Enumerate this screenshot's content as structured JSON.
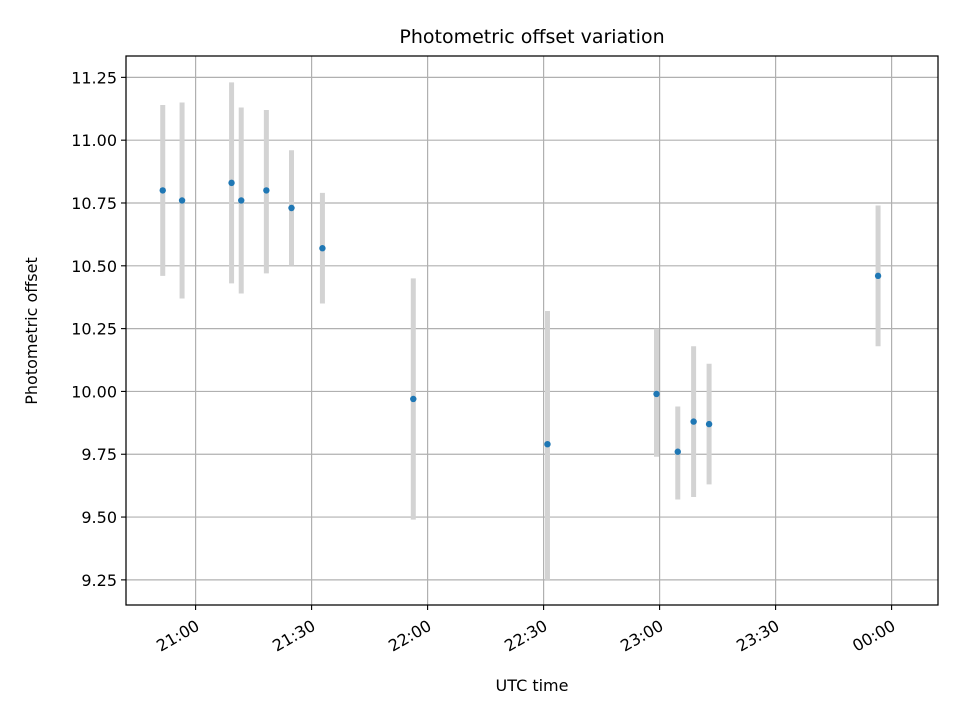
{
  "chart_data": {
    "type": "scatter",
    "title": "Photometric offset variation",
    "xlabel": "UTC time",
    "ylabel": "Photometric offset",
    "x_unit": "minutes since 20:00 UTC",
    "xlim": [
      42,
      252
    ],
    "ylim": [
      9.15,
      11.335
    ],
    "grid": true,
    "x_ticks": [
      {
        "value": 60,
        "label": "21:00"
      },
      {
        "value": 90,
        "label": "21:30"
      },
      {
        "value": 120,
        "label": "22:00"
      },
      {
        "value": 150,
        "label": "22:30"
      },
      {
        "value": 180,
        "label": "23:00"
      },
      {
        "value": 210,
        "label": "23:30"
      },
      {
        "value": 240,
        "label": "00:00"
      }
    ],
    "y_ticks": [
      {
        "value": 9.25,
        "label": "9.25"
      },
      {
        "value": 9.5,
        "label": "9.50"
      },
      {
        "value": 9.75,
        "label": "9.75"
      },
      {
        "value": 10.0,
        "label": "10.00"
      },
      {
        "value": 10.25,
        "label": "10.25"
      },
      {
        "value": 10.5,
        "label": "10.50"
      },
      {
        "value": 10.75,
        "label": "10.75"
      },
      {
        "value": 11.0,
        "label": "11.00"
      },
      {
        "value": 11.25,
        "label": "11.25"
      }
    ],
    "series": [
      {
        "name": "Photometric offset",
        "marker_color": "#1f77b4",
        "errorbar_color": "#d3d3d3",
        "points": [
          {
            "x": 51.5,
            "y": 10.8,
            "ylow": 10.46,
            "yhigh": 11.14
          },
          {
            "x": 56.5,
            "y": 10.76,
            "ylow": 10.37,
            "yhigh": 11.15
          },
          {
            "x": 69.3,
            "y": 10.83,
            "ylow": 10.43,
            "yhigh": 11.23
          },
          {
            "x": 71.8,
            "y": 10.76,
            "ylow": 10.39,
            "yhigh": 11.13
          },
          {
            "x": 78.3,
            "y": 10.8,
            "ylow": 10.47,
            "yhigh": 11.12
          },
          {
            "x": 84.8,
            "y": 10.73,
            "ylow": 10.5,
            "yhigh": 10.96
          },
          {
            "x": 92.8,
            "y": 10.57,
            "ylow": 10.35,
            "yhigh": 10.79
          },
          {
            "x": 116.3,
            "y": 9.97,
            "ylow": 9.49,
            "yhigh": 10.45
          },
          {
            "x": 151.0,
            "y": 9.79,
            "ylow": 9.25,
            "yhigh": 10.32
          },
          {
            "x": 179.2,
            "y": 9.99,
            "ylow": 9.74,
            "yhigh": 10.25
          },
          {
            "x": 184.7,
            "y": 9.76,
            "ylow": 9.57,
            "yhigh": 9.94
          },
          {
            "x": 188.8,
            "y": 9.88,
            "ylow": 9.58,
            "yhigh": 10.18
          },
          {
            "x": 192.8,
            "y": 9.87,
            "ylow": 9.63,
            "yhigh": 10.11
          },
          {
            "x": 236.5,
            "y": 10.46,
            "ylow": 10.18,
            "yhigh": 10.74
          }
        ]
      }
    ]
  }
}
